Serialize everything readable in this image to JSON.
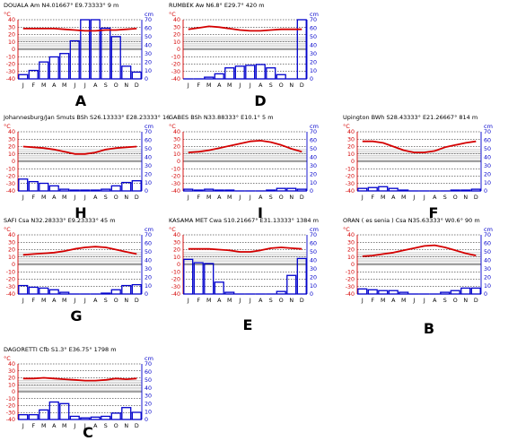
{
  "colors": {
    "temperature": "#d40000",
    "precipitation": "#0000cc",
    "axis_left": "#d40000",
    "axis_right": "#0000cc",
    "grid": "#000000",
    "band": "#9a9a9a"
  },
  "chart_data": [
    {
      "type": "bar",
      "panel": "A",
      "title": "DOUALA  Am   N4.01667° E9.73333°   9 m",
      "categories": [
        "J",
        "F",
        "M",
        "A",
        "M",
        "J",
        "J",
        "A",
        "S",
        "O",
        "N",
        "D"
      ],
      "ylabel_left": "°C",
      "ylabel_right": "cm",
      "ylim_left": [
        -40,
        40
      ],
      "ylim_right": [
        0,
        70
      ],
      "series": [
        {
          "kind": "line",
          "axis": "left",
          "values": [
            28,
            28,
            28,
            28,
            27,
            26,
            25,
            25,
            26,
            26,
            27,
            28
          ]
        },
        {
          "kind": "bar",
          "axis": "right",
          "values": [
            5,
            10,
            20,
            26,
            30,
            45,
            70,
            70,
            60,
            50,
            15,
            8
          ]
        }
      ]
    },
    {
      "type": "bar",
      "panel": "D",
      "title": "RUMBEK  Aw   N6.8° E29.7°   420 m",
      "categories": [
        "J",
        "F",
        "M",
        "A",
        "M",
        "J",
        "J",
        "A",
        "S",
        "O",
        "N",
        "D"
      ],
      "ylabel_left": "°C",
      "ylabel_right": "cm",
      "ylim_left": [
        -40,
        40
      ],
      "ylim_right": [
        0,
        70
      ],
      "series": [
        {
          "kind": "line",
          "axis": "left",
          "values": [
            27,
            29,
            31,
            30,
            28,
            26,
            25,
            25,
            26,
            27,
            27,
            27
          ]
        },
        {
          "kind": "bar",
          "axis": "right",
          "values": [
            0,
            0,
            2,
            6,
            13,
            15,
            16,
            17,
            13,
            5,
            0,
            70
          ]
        }
      ]
    },
    {
      "type": "bar",
      "panel": "H",
      "title": "Johannesburg/Jan Smuts  BSh   S26.13333° E28.23333°   16",
      "categories": [
        "J",
        "F",
        "M",
        "A",
        "M",
        "J",
        "J",
        "A",
        "S",
        "O",
        "N",
        "D"
      ],
      "ylabel_left": "°C",
      "ylabel_right": "cm",
      "ylim_left": [
        -40,
        40
      ],
      "ylim_right": [
        0,
        70
      ],
      "series": [
        {
          "kind": "line",
          "axis": "left",
          "values": [
            20,
            19,
            18,
            16,
            13,
            10,
            10,
            12,
            16,
            18,
            19,
            20
          ]
        },
        {
          "kind": "bar",
          "axis": "right",
          "values": [
            14,
            11,
            9,
            6,
            2,
            1,
            1,
            1,
            2,
            6,
            10,
            12
          ]
        }
      ]
    },
    {
      "type": "bar",
      "panel": "I",
      "title": "GABES  BSh   N33.88333° E10.1°   5 m",
      "categories": [
        "J",
        "F",
        "M",
        "A",
        "M",
        "J",
        "J",
        "A",
        "S",
        "O",
        "N",
        "D"
      ],
      "ylabel_left": "°C",
      "ylabel_right": "cm",
      "ylim_left": [
        -40,
        40
      ],
      "ylim_right": [
        0,
        70
      ],
      "series": [
        {
          "kind": "line",
          "axis": "left",
          "values": [
            12,
            13,
            15,
            18,
            21,
            24,
            27,
            28,
            26,
            22,
            17,
            13
          ]
        },
        {
          "kind": "bar",
          "axis": "right",
          "values": [
            2,
            1,
            2,
            1,
            1,
            0,
            0,
            0,
            1,
            3,
            3,
            2
          ]
        }
      ]
    },
    {
      "type": "bar",
      "panel": "F",
      "title": "Upington  BWh   S28.43333° E21.26667°   814 m",
      "categories": [
        "J",
        "F",
        "M",
        "A",
        "M",
        "J",
        "J",
        "A",
        "S",
        "O",
        "N",
        "D"
      ],
      "ylabel_left": "°C",
      "ylabel_right": "cm",
      "ylim_left": [
        -40,
        40
      ],
      "ylim_right": [
        0,
        70
      ],
      "series": [
        {
          "kind": "line",
          "axis": "left",
          "values": [
            27,
            27,
            25,
            20,
            15,
            12,
            12,
            14,
            19,
            22,
            25,
            27
          ]
        },
        {
          "kind": "bar",
          "axis": "right",
          "values": [
            3,
            4,
            5,
            3,
            1,
            0,
            0,
            0,
            0,
            1,
            1,
            2
          ]
        }
      ]
    },
    {
      "type": "bar",
      "panel": "G",
      "title": "SAFI  Csa   N32.28333° E9.23333°   45 m",
      "categories": [
        "J",
        "F",
        "M",
        "A",
        "M",
        "J",
        "J",
        "A",
        "S",
        "O",
        "N",
        "D"
      ],
      "ylabel_left": "°C",
      "ylabel_right": "cm",
      "ylim_left": [
        -40,
        40
      ],
      "ylim_right": [
        0,
        70
      ],
      "series": [
        {
          "kind": "line",
          "axis": "left",
          "values": [
            13,
            14,
            15,
            16,
            18,
            21,
            23,
            24,
            23,
            20,
            17,
            14
          ]
        },
        {
          "kind": "bar",
          "axis": "right",
          "values": [
            10,
            8,
            7,
            5,
            2,
            0,
            0,
            0,
            1,
            5,
            10,
            11
          ]
        }
      ]
    },
    {
      "type": "bar",
      "panel": "E",
      "title": "KASAMA MET  Cwa   S10.21667° E31.13333°   1384 m",
      "categories": [
        "J",
        "F",
        "M",
        "A",
        "M",
        "J",
        "J",
        "A",
        "S",
        "O",
        "N",
        "D"
      ],
      "ylabel_left": "°C",
      "ylabel_right": "cm",
      "ylim_left": [
        -40,
        40
      ],
      "ylim_right": [
        0,
        70
      ],
      "series": [
        {
          "kind": "line",
          "axis": "left",
          "values": [
            21,
            21,
            21,
            20,
            19,
            17,
            17,
            19,
            22,
            23,
            22,
            21
          ]
        },
        {
          "kind": "bar",
          "axis": "right",
          "values": [
            41,
            37,
            36,
            14,
            2,
            0,
            0,
            0,
            0,
            3,
            22,
            42
          ]
        }
      ]
    },
    {
      "type": "bar",
      "panel": "B",
      "title": "ORAN ( es senia )  Csa   N35.63333° W0.6°   90 m",
      "categories": [
        "J",
        "F",
        "M",
        "A",
        "M",
        "J",
        "J",
        "A",
        "S",
        "O",
        "N",
        "D"
      ],
      "ylabel_left": "°C",
      "ylabel_right": "cm",
      "ylim_left": [
        -40,
        40
      ],
      "ylim_right": [
        0,
        70
      ],
      "series": [
        {
          "kind": "line",
          "axis": "left",
          "values": [
            11,
            12,
            14,
            16,
            19,
            22,
            25,
            26,
            23,
            19,
            15,
            12
          ]
        },
        {
          "kind": "bar",
          "axis": "right",
          "values": [
            6,
            5,
            4,
            4,
            2,
            0,
            0,
            0,
            2,
            4,
            7,
            7
          ]
        }
      ]
    },
    {
      "type": "bar",
      "panel": "C",
      "title": "DAGORETTI  Cfb   S1.3° E36.75°   1798 m",
      "categories": [
        "J",
        "F",
        "M",
        "A",
        "M",
        "J",
        "J",
        "A",
        "S",
        "O",
        "N",
        "D"
      ],
      "ylabel_left": "°C",
      "ylabel_right": "cm",
      "ylim_left": [
        -40,
        40
      ],
      "ylim_right": [
        0,
        70
      ],
      "series": [
        {
          "kind": "line",
          "axis": "left",
          "values": [
            19,
            19,
            20,
            19,
            18,
            17,
            16,
            16,
            17,
            19,
            18,
            19
          ]
        },
        {
          "kind": "bar",
          "axis": "right",
          "values": [
            6,
            6,
            12,
            22,
            20,
            4,
            2,
            3,
            4,
            8,
            15,
            9
          ]
        }
      ]
    }
  ]
}
